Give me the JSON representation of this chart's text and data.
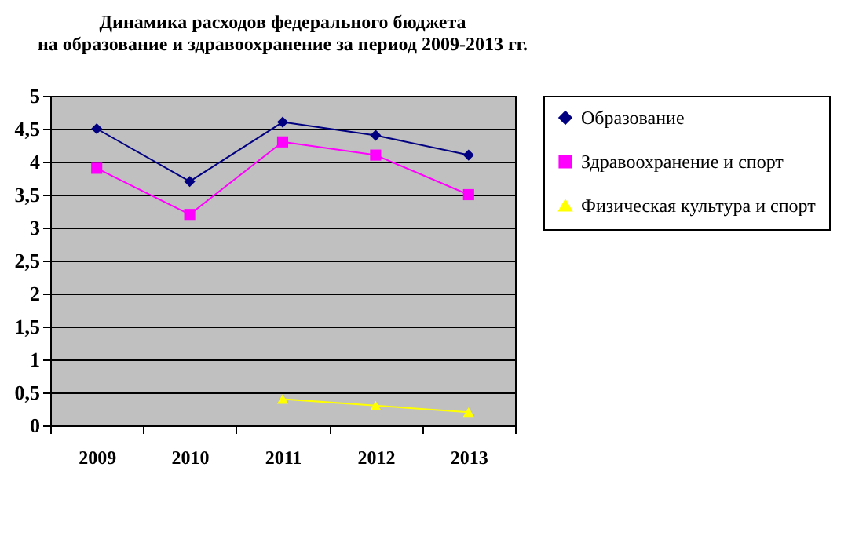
{
  "chart_data": {
    "type": "line",
    "title": "Динамика расходов федерального бюджета\nна образование и здравоохранение за период  2009-2013 гг.",
    "categories": [
      "2009",
      "2010",
      "2011",
      "2012",
      "2013"
    ],
    "series": [
      {
        "name": "Образование",
        "color": "#000080",
        "marker": "diamond",
        "values": [
          4.5,
          3.7,
          4.6,
          4.4,
          4.1
        ]
      },
      {
        "name": "Здравоохранение и спорт",
        "color": "#ff00ff",
        "marker": "square",
        "values": [
          3.9,
          3.2,
          4.3,
          4.1,
          3.5
        ]
      },
      {
        "name": "Физическая культура и спорт",
        "color": "#ffff00",
        "marker": "triangle",
        "values": [
          null,
          null,
          0.4,
          0.3,
          0.2
        ]
      }
    ],
    "ylim": [
      0,
      5
    ],
    "yticks": [
      0,
      {
        "value": 0.5,
        "label": "0,5"
      },
      1,
      {
        "value": 1.5,
        "label": "1,5"
      },
      2,
      {
        "value": 2.5,
        "label": "2,5"
      },
      3,
      {
        "value": 3.5,
        "label": "3,5"
      },
      4,
      {
        "value": 4.5,
        "label": "4,5"
      },
      5
    ],
    "grid": "y",
    "legend": "right"
  }
}
